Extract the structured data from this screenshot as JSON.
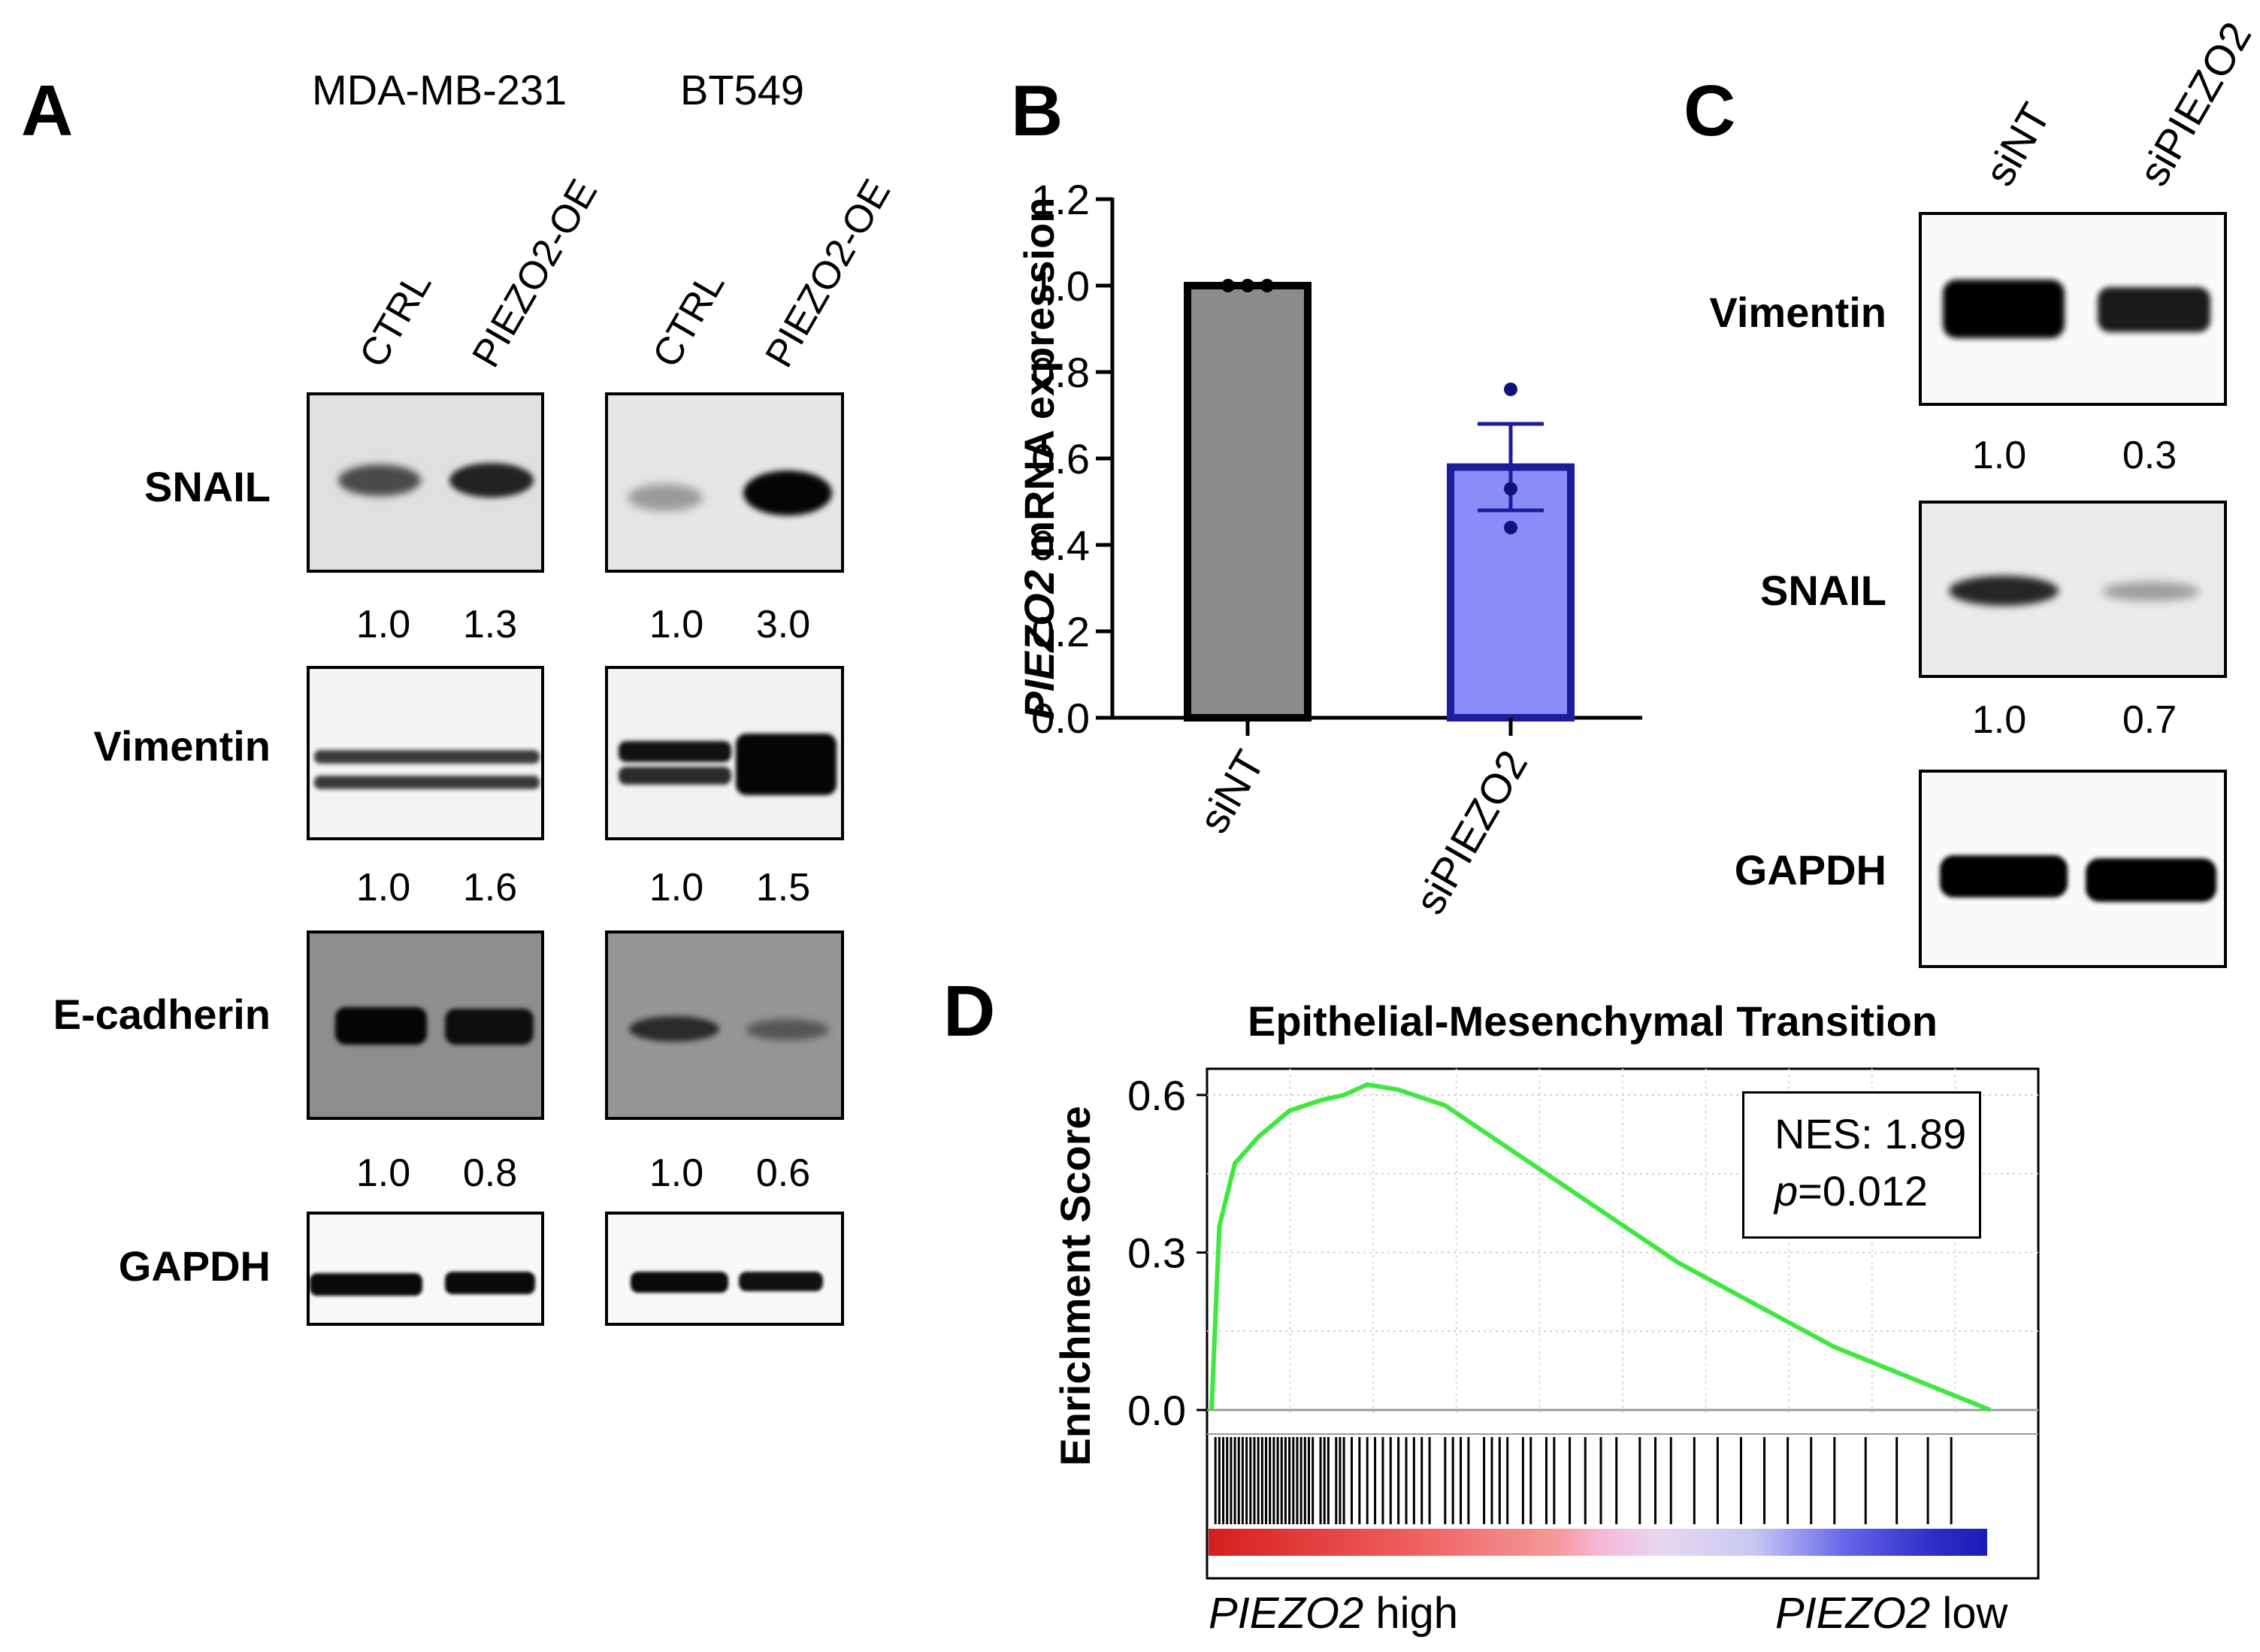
{
  "panels": {
    "A": {
      "label": "A",
      "cell_lines": [
        "MDA-MB-231",
        "BT549"
      ],
      "lane_labels": [
        "CTRL",
        "PIEZO2-OE",
        "CTRL",
        "PIEZO2-OE"
      ],
      "rows": [
        {
          "protein": "SNAIL",
          "values": [
            "1.0",
            "1.3",
            "1.0",
            "3.0"
          ]
        },
        {
          "protein": "Vimentin",
          "values": [
            "1.0",
            "1.6",
            "1.0",
            "1.5"
          ]
        },
        {
          "protein": "E-cadherin",
          "values": [
            "1.0",
            "0.8",
            "1.0",
            "0.6"
          ]
        },
        {
          "protein": "GAPDH",
          "values": []
        }
      ]
    },
    "B": {
      "label": "B"
    },
    "C": {
      "label": "C",
      "lane_labels": [
        "siNT",
        "siPIEZO2"
      ],
      "rows": [
        {
          "protein": "Vimentin",
          "values": [
            "1.0",
            "0.3"
          ]
        },
        {
          "protein": "SNAIL",
          "values": [
            "1.0",
            "0.7"
          ]
        },
        {
          "protein": "GAPDH",
          "values": []
        }
      ]
    },
    "D": {
      "label": "D",
      "nes_label": "NES: 1.89",
      "p_symbol": "p",
      "p_value": "=0.012",
      "x_left": {
        "gene": "PIEZO2",
        "suffix": " high"
      },
      "x_right": {
        "gene": "PIEZO2",
        "suffix": " low"
      }
    }
  },
  "chart_data": [
    {
      "type": "bar",
      "panel": "B",
      "categories": [
        "siNT",
        "siPIEZO2"
      ],
      "values": [
        1.0,
        0.58
      ],
      "error": [
        0.0,
        0.1
      ],
      "points": [
        [
          1.0,
          1.0,
          1.0
        ],
        [
          0.76,
          0.53,
          0.44
        ]
      ],
      "ylabel_gene": "PIEZO2",
      "ylabel_rest": " mRNA expression",
      "ylim": [
        0,
        1.2
      ],
      "yticks": [
        "0.0",
        "0.2",
        "0.4",
        "0.6",
        "0.8",
        "1.0",
        "1.2"
      ],
      "colors": [
        "#8c8c8c",
        "#8c8cf8"
      ],
      "edge_colors": [
        "#000000",
        "#1d1d9c"
      ]
    },
    {
      "type": "line",
      "panel": "D",
      "title": "Epithelial-Mesenchymal Transition",
      "ylabel": "Enrichment Score",
      "ylim": [
        -0.02,
        0.65
      ],
      "yticks": [
        "0.0",
        "0.3",
        "0.6"
      ],
      "series": [
        {
          "name": "Running enrichment score",
          "color": "#3ee83e",
          "x": [
            0,
            0.01,
            0.03,
            0.06,
            0.1,
            0.14,
            0.17,
            0.2,
            0.24,
            0.3,
            0.35,
            0.4,
            0.5,
            0.6,
            0.7,
            0.8,
            0.9,
            1.0
          ],
          "y": [
            0.0,
            0.35,
            0.47,
            0.52,
            0.57,
            0.59,
            0.6,
            0.62,
            0.61,
            0.58,
            0.53,
            0.48,
            0.38,
            0.28,
            0.2,
            0.12,
            0.06,
            0.0
          ]
        }
      ],
      "hit_positions": [
        0.005,
        0.01,
        0.015,
        0.02,
        0.025,
        0.03,
        0.035,
        0.04,
        0.045,
        0.05,
        0.055,
        0.06,
        0.065,
        0.07,
        0.075,
        0.08,
        0.085,
        0.09,
        0.095,
        0.1,
        0.105,
        0.11,
        0.115,
        0.12,
        0.125,
        0.13,
        0.14,
        0.145,
        0.15,
        0.16,
        0.165,
        0.17,
        0.18,
        0.19,
        0.2,
        0.21,
        0.22,
        0.23,
        0.24,
        0.25,
        0.26,
        0.27,
        0.28,
        0.3,
        0.31,
        0.32,
        0.33,
        0.35,
        0.36,
        0.37,
        0.38,
        0.4,
        0.41,
        0.43,
        0.44,
        0.46,
        0.48,
        0.5,
        0.52,
        0.55,
        0.57,
        0.59,
        0.62,
        0.65,
        0.68,
        0.71,
        0.74,
        0.77,
        0.8,
        0.84,
        0.88,
        0.92,
        0.95
      ],
      "nes": 1.89,
      "p": 0.012
    }
  ]
}
